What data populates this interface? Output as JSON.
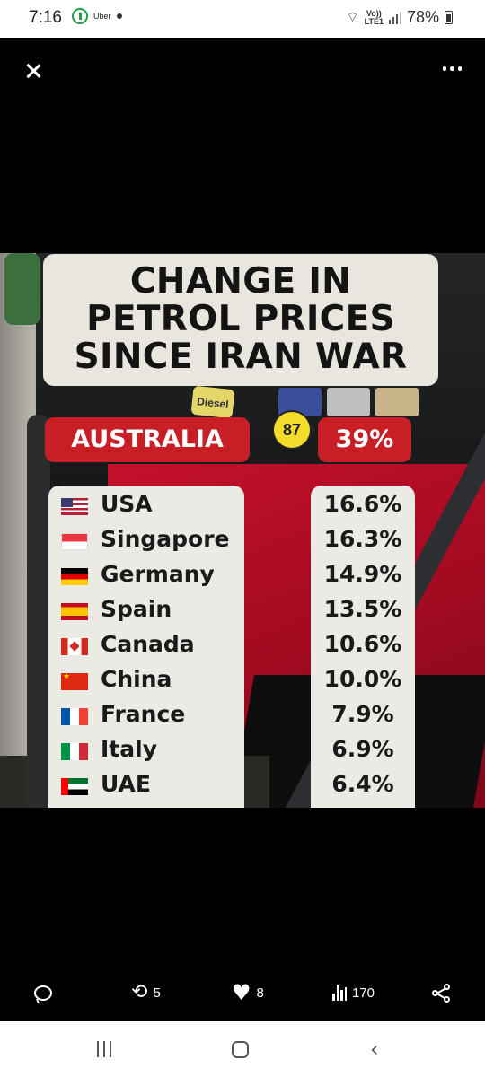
{
  "status_bar": {
    "time": "7:16",
    "uber_label": "Uber",
    "network_top": "Vo))",
    "network_bottom": "LTE1",
    "battery": "78%"
  },
  "viewer": {
    "close_icon": "close-icon",
    "more_icon": "more-options-icon"
  },
  "image": {
    "title_lines": [
      "CHANGE IN",
      "PETROL PRICES",
      "SINCE IRAN WAR"
    ],
    "highlight": {
      "country": "AUSTRALIA",
      "value": "39%"
    },
    "pump_labels": {
      "diesel": "Diesel",
      "octane": "87"
    },
    "rows": [
      {
        "flag": "usa-flag",
        "country": "USA",
        "value": "16.6%"
      },
      {
        "flag": "singapore-flag",
        "country": "Singapore",
        "value": "16.3%"
      },
      {
        "flag": "germany-flag",
        "country": "Germany",
        "value": "14.9%"
      },
      {
        "flag": "spain-flag",
        "country": "Spain",
        "value": "13.5%"
      },
      {
        "flag": "canada-flag",
        "country": "Canada",
        "value": "10.6%"
      },
      {
        "flag": "china-flag",
        "country": "China",
        "value": "10.0%"
      },
      {
        "flag": "france-flag",
        "country": "France",
        "value": "7.9%"
      },
      {
        "flag": "italy-flag",
        "country": "Italy",
        "value": "6.9%"
      },
      {
        "flag": "uae-flag",
        "country": "UAE",
        "value": "6.4%"
      }
    ]
  },
  "actions": {
    "reply_count": "",
    "retweet_count": "5",
    "like_count": "8",
    "views_count": "170"
  },
  "colors": {
    "accent_red": "#c81e26",
    "card_bg": "#eceae5"
  }
}
